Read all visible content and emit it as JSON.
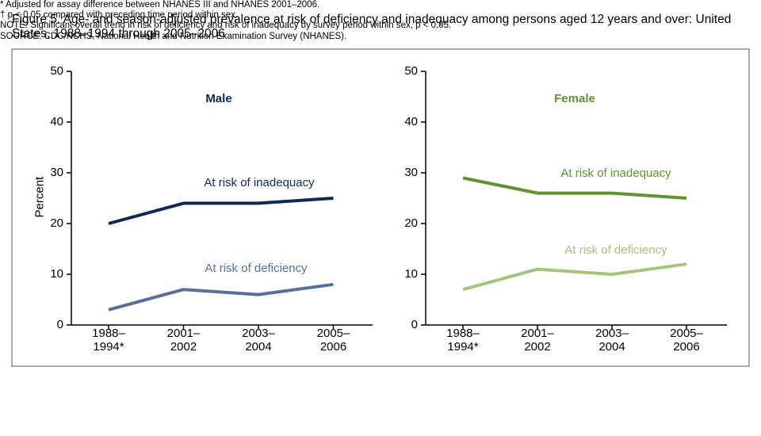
{
  "title": "Figure 5. Age- and season-adjusted prevalence at risk of deficiency and inadequacy among persons aged 12 years and over: United States, 1988–1994 through 2005–2006",
  "notes": [
    "* Adjusted for assay difference between NHANES III and NHANES 2001–2006.",
    "† p < 0.05 compared with preceding time period within sex.",
    "NOTE: Significant overall trend in risk of deficiency and risk of inadequacy by survey period within sex, p < 0.05.",
    "SOURCE: CDC/NCHS, National Health and Nutrition Examination Survey (NHANES)."
  ],
  "chart_data": [
    {
      "type": "line",
      "title": "Male",
      "title_color": "#0d2a55",
      "y_label": "Percent",
      "categories": [
        "1988–\n1994*",
        "2001–\n2002",
        "2003–\n2004",
        "2005–\n2006"
      ],
      "series": [
        {
          "name": "At risk of inadequacy",
          "color": "#0d2a55",
          "values": [
            20,
            24,
            24,
            25
          ]
        },
        {
          "name": "At risk of deficiency",
          "color": "#5a6f98",
          "values": [
            3,
            7,
            6,
            8
          ]
        }
      ],
      "ylim": [
        0,
        50
      ],
      "yticks": [
        0,
        10,
        20,
        30,
        40,
        50
      ]
    },
    {
      "type": "line",
      "title": "Female",
      "title_color": "#5e9430",
      "categories": [
        "1988–\n1994*",
        "2001–\n2002",
        "2003–\n2004",
        "2005–\n2006"
      ],
      "series": [
        {
          "name": "At risk of inadequacy",
          "color": "#5e9430",
          "values": [
            29,
            26,
            26,
            25
          ]
        },
        {
          "name": "At risk of deficiency",
          "color": "#a3c47a",
          "values": [
            7,
            11,
            10,
            12
          ]
        }
      ],
      "ylim": [
        0,
        50
      ],
      "yticks": [
        0,
        10,
        20,
        30,
        40,
        50
      ]
    }
  ]
}
